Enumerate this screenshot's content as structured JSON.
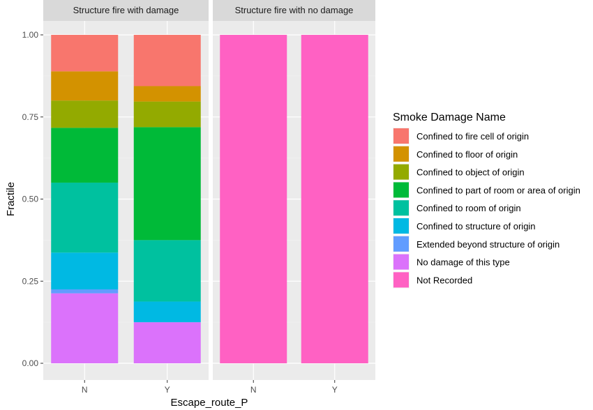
{
  "chart_data": {
    "type": "bar",
    "stacked": true,
    "normalized": true,
    "xlabel": "Escape_route_P",
    "ylabel": "Fractile",
    "ylim": [
      0,
      1
    ],
    "yticks": [
      "0.00",
      "0.25",
      "0.50",
      "0.75",
      "1.00"
    ],
    "grid": true,
    "legend_position": "right",
    "legend_title": "Smoke Damage Name",
    "categories_legend": [
      {
        "name": "Confined to fire cell of origin",
        "color": "#F8766D"
      },
      {
        "name": "Confined to floor of origin",
        "color": "#D39200"
      },
      {
        "name": "Confined to object of origin",
        "color": "#93AA00"
      },
      {
        "name": "Confined to part of room or area of origin",
        "color": "#00BA38"
      },
      {
        "name": "Confined to room of origin",
        "color": "#00C19F"
      },
      {
        "name": "Confined to structure of origin",
        "color": "#00B9E3"
      },
      {
        "name": "Extended beyond structure of origin",
        "color": "#619CFF"
      },
      {
        "name": "No damage of this type",
        "color": "#DB72FB"
      },
      {
        "name": "Not Recorded",
        "color": "#FF61C3"
      }
    ],
    "stack_order": [
      "No damage of this type",
      "Extended beyond structure of origin",
      "Confined to structure of origin",
      "Confined to room of origin",
      "Confined to part of room or area of origin",
      "Confined to object of origin",
      "Confined to floor of origin",
      "Confined to fire cell of origin",
      "Not Recorded"
    ],
    "panels": [
      {
        "title": "Structure fire with damage",
        "categories": [
          "N",
          "Y"
        ],
        "bars": [
          {
            "x": "N",
            "segments": {
              "No damage of this type": 0.213,
              "Extended beyond structure of origin": 0.012,
              "Confined to structure of origin": 0.112,
              "Confined to room of origin": 0.213,
              "Confined to part of room or area of origin": 0.167,
              "Confined to object of origin": 0.083,
              "Confined to floor of origin": 0.089,
              "Confined to fire cell of origin": 0.111,
              "Not Recorded": 0
            }
          },
          {
            "x": "Y",
            "segments": {
              "No damage of this type": 0.125,
              "Extended beyond structure of origin": 0,
              "Confined to structure of origin": 0.063,
              "Confined to room of origin": 0.187,
              "Confined to part of room or area of origin": 0.344,
              "Confined to object of origin": 0.078,
              "Confined to floor of origin": 0.047,
              "Confined to fire cell of origin": 0.156,
              "Not Recorded": 0
            }
          }
        ]
      },
      {
        "title": "Structure fire with no damage",
        "categories": [
          "N",
          "Y"
        ],
        "bars": [
          {
            "x": "N",
            "segments": {
              "Not Recorded": 1.0
            }
          },
          {
            "x": "Y",
            "segments": {
              "Not Recorded": 1.0
            }
          }
        ]
      }
    ]
  }
}
